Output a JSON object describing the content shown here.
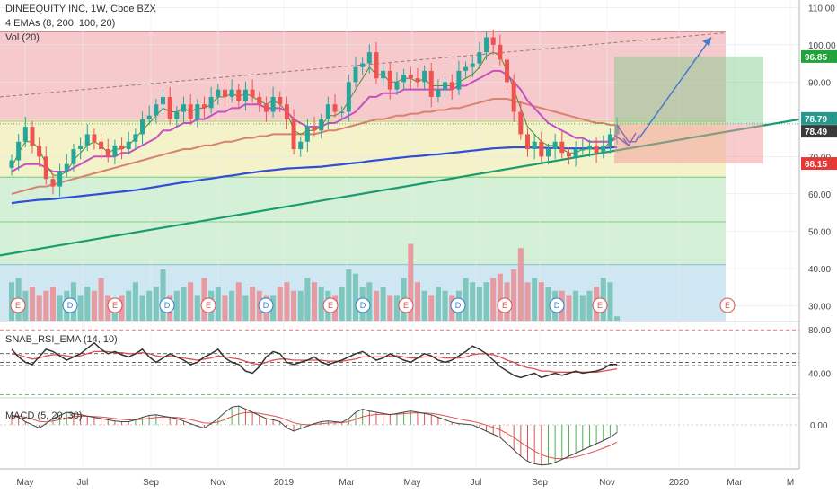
{
  "legend": {
    "title": "DINEEQUITY INC, 1W, Cboe BZX",
    "ema": "4 EMAs (8, 200, 100, 20)",
    "vol": "Vol (20)",
    "rsi": "SNAB_RSI_EMA  (14, 10)",
    "macd": "MACD (5, 20, 30)"
  },
  "colors": {
    "up": "#26a69a",
    "down": "#ef5350",
    "red_zone": "#f6c9cc",
    "yellow_zone": "#f3f2c8",
    "green_zone": "#d4f0d6",
    "blue_zone": "#cfe6f3",
    "ema_fast": "#4e8c2f",
    "ema_mid": "#c84fc0",
    "ema_slow": "#d9826f",
    "ema_long": "#2f4fd6",
    "trendline": "#1a9c6e",
    "rsi_line": "#333333",
    "rsi_ema": "#e05050",
    "macd_line": "#444444"
  },
  "chart_data": [
    {
      "type": "candlestick",
      "title": "DINEEQUITY INC, 1W, Cboe BZX",
      "x_ticks": [
        "May",
        "Jul",
        "Sep",
        "Nov",
        "2019",
        "Mar",
        "May",
        "Jul",
        "Sep",
        "Nov",
        "2020",
        "Mar",
        "M"
      ],
      "y_ticks": [
        "110.00",
        "100.00",
        "90.00",
        "80.00",
        "70.00",
        "60.00",
        "50.00",
        "40.00",
        "30.00"
      ],
      "ylim": [
        26,
        112
      ],
      "price_tags": [
        {
          "label": "96.85",
          "value": 96.85,
          "color": "#1fa33a"
        },
        {
          "label": "78.79",
          "value": 78.79,
          "color": "#25998d"
        },
        {
          "label": "78.49",
          "value": 78.49,
          "color": "#3a3a3a"
        },
        {
          "label": "68.15",
          "value": 68.15,
          "color": "#e53935"
        }
      ],
      "closes": [
        69,
        74,
        78,
        73,
        70,
        64,
        62,
        66,
        68,
        72,
        73,
        76,
        74,
        72,
        70,
        73,
        72,
        74,
        76,
        80,
        81,
        84,
        86,
        80,
        82,
        84,
        80,
        84,
        83,
        86,
        88,
        86,
        88,
        85,
        88,
        86,
        84,
        82,
        86,
        84,
        80,
        72,
        74,
        78,
        77,
        80,
        84,
        82,
        82,
        90,
        94,
        95,
        98,
        91,
        93,
        88,
        90,
        92,
        91,
        90,
        93,
        86,
        88,
        90,
        88,
        93,
        94,
        95,
        98,
        102,
        100,
        96,
        90,
        82,
        76,
        72,
        74,
        70,
        72,
        74,
        71,
        70,
        72,
        72,
        73,
        71,
        73,
        76,
        78.5
      ],
      "ema_fast": [
        67,
        71,
        74,
        74,
        72,
        68,
        65,
        65,
        66,
        69,
        71,
        73,
        74,
        73,
        71,
        72,
        72,
        73,
        75,
        77,
        79,
        81,
        83,
        82,
        82,
        83,
        82,
        83,
        83,
        84,
        86,
        86,
        87,
        86,
        87,
        86,
        85,
        84,
        85,
        84,
        82,
        77,
        76,
        77,
        77,
        78,
        81,
        81,
        82,
        85,
        88,
        91,
        94,
        92,
        92,
        90,
        90,
        91,
        91,
        90,
        91,
        89,
        89,
        89,
        89,
        90,
        91,
        92,
        94,
        97,
        98,
        97,
        93,
        88,
        83,
        78,
        76,
        74,
        73,
        73,
        72,
        71,
        71,
        72,
        72,
        72,
        72,
        74,
        76
      ],
      "ema_mid": [
        66,
        67,
        68,
        68,
        68,
        67,
        66,
        66,
        66,
        67,
        68,
        69,
        70,
        70,
        70,
        70,
        71,
        71,
        72,
        73,
        74,
        75,
        77,
        77,
        78,
        79,
        79,
        80,
        80,
        81,
        82,
        82,
        83,
        83,
        84,
        84,
        84,
        83,
        83,
        83,
        82,
        80,
        79,
        78,
        78,
        78,
        79,
        79,
        80,
        81,
        82,
        84,
        86,
        86,
        87,
        87,
        87,
        88,
        88,
        88,
        88,
        88,
        88,
        88,
        88,
        89,
        89,
        90,
        91,
        92,
        93,
        93,
        92,
        90,
        88,
        85,
        83,
        81,
        79,
        78,
        77,
        76,
        75,
        75,
        74,
        74,
        74,
        74,
        75
      ],
      "ema_slow": [
        60,
        60.5,
        61,
        61.5,
        62,
        62,
        62.5,
        63,
        63.5,
        64,
        64.5,
        65,
        65.5,
        66,
        66.5,
        67,
        67.5,
        68,
        68.5,
        69,
        69.5,
        70,
        70.5,
        71,
        71.5,
        72,
        72,
        72.5,
        73,
        73,
        73.5,
        74,
        74,
        74.5,
        75,
        75,
        75.5,
        75.5,
        76,
        76,
        76,
        76,
        76,
        76,
        76,
        76.5,
        77,
        77,
        77.5,
        78,
        78.5,
        79,
        79.5,
        80,
        80,
        80.5,
        81,
        81,
        81.5,
        81.5,
        82,
        82,
        82.5,
        82.5,
        83,
        83,
        83.5,
        84,
        84.5,
        85,
        85.5,
        85.5,
        85.5,
        85,
        84.5,
        84,
        83.5,
        83,
        82.5,
        82,
        81.5,
        81,
        80.5,
        80,
        79.5,
        79,
        79,
        78.5,
        78.5
      ],
      "ema_long": [
        57.5,
        57.8,
        58,
        58.2,
        58.4,
        58.5,
        58.6,
        58.8,
        59,
        59.2,
        59.4,
        59.6,
        59.8,
        60,
        60.2,
        60.4,
        60.6,
        60.8,
        61,
        61.3,
        61.6,
        61.9,
        62.2,
        62.5,
        62.8,
        63.1,
        63.3,
        63.6,
        63.9,
        64.1,
        64.4,
        64.7,
        64.9,
        65.2,
        65.5,
        65.7,
        66,
        66.2,
        66.4,
        66.6,
        66.8,
        66.9,
        67,
        67.1,
        67.2,
        67.3,
        67.5,
        67.7,
        67.9,
        68.1,
        68.3,
        68.5,
        68.8,
        69,
        69.2,
        69.4,
        69.6,
        69.8,
        70,
        70.1,
        70.3,
        70.5,
        70.6,
        70.8,
        71,
        71.2,
        71.4,
        71.6,
        71.8,
        72,
        72.2,
        72.3,
        72.4,
        72.5,
        72.5,
        72.5,
        72.4,
        72.4,
        72.3,
        72.3,
        72.2,
        72.2,
        72.2,
        72.2,
        72.2,
        72.2,
        72.3,
        72.4,
        72.6
      ],
      "volume_relative": [
        0.45,
        0.5,
        0.35,
        0.4,
        0.3,
        0.35,
        0.4,
        0.3,
        0.35,
        0.45,
        0.3,
        0.4,
        0.35,
        0.5,
        0.3,
        0.25,
        0.3,
        0.35,
        0.45,
        0.3,
        0.35,
        0.4,
        0.6,
        0.3,
        0.35,
        0.4,
        0.45,
        0.3,
        0.5,
        0.35,
        0.4,
        0.3,
        0.35,
        0.45,
        0.3,
        0.4,
        0.35,
        0.3,
        0.3,
        0.4,
        0.45,
        0.35,
        0.35,
        0.5,
        0.45,
        0.4,
        0.35,
        0.3,
        0.4,
        0.6,
        0.55,
        0.4,
        0.45,
        0.35,
        0.4,
        0.3,
        0.3,
        0.5,
        0.9,
        0.45,
        0.35,
        0.3,
        0.4,
        0.35,
        0.3,
        0.35,
        0.5,
        0.45,
        0.4,
        0.45,
        0.5,
        0.55,
        0.45,
        0.6,
        0.85,
        0.45,
        0.5,
        0.45,
        0.4,
        0.35,
        0.35,
        0.3,
        0.35,
        0.3,
        0.35,
        0.4,
        0.5,
        0.45,
        0.05
      ],
      "events": [
        "E",
        "D",
        "E",
        "D",
        "E",
        "D",
        "E",
        "D",
        "E",
        "D",
        "E",
        "D",
        "E",
        "E"
      ]
    },
    {
      "type": "line",
      "title": "SNAB_RSI_EMA  (14, 10)",
      "y_ticks": [
        "80.00",
        "40.00"
      ],
      "ylim": [
        18,
        86
      ],
      "reference_levels": [
        80,
        58,
        55,
        50,
        47,
        20
      ],
      "rsi": [
        62,
        55,
        50,
        48,
        55,
        62,
        60,
        56,
        52,
        55,
        58,
        63,
        68,
        62,
        58,
        60,
        57,
        55,
        58,
        62,
        55,
        50,
        54,
        58,
        55,
        52,
        48,
        50,
        55,
        58,
        62,
        54,
        50,
        48,
        42,
        40,
        46,
        55,
        60,
        58,
        50,
        48,
        50,
        52,
        55,
        50,
        48,
        50,
        52,
        55,
        58,
        60,
        56,
        52,
        54,
        58,
        55,
        52,
        50,
        54,
        58,
        56,
        52,
        50,
        52,
        56,
        60,
        65,
        62,
        58,
        52,
        46,
        42,
        38,
        36,
        38,
        40,
        36,
        38,
        40,
        38,
        40,
        42,
        40,
        41,
        42,
        44,
        48,
        48
      ],
      "rsi_ema": [
        58,
        57,
        55,
        53,
        54,
        56,
        57,
        57,
        56,
        55,
        56,
        58,
        60,
        60,
        60,
        59,
        59,
        58,
        58,
        59,
        58,
        56,
        55,
        56,
        55,
        54,
        53,
        52,
        53,
        54,
        56,
        55,
        54,
        53,
        51,
        49,
        48,
        50,
        52,
        53,
        53,
        52,
        52,
        52,
        52,
        52,
        51,
        51,
        51,
        52,
        53,
        55,
        55,
        55,
        55,
        56,
        56,
        55,
        54,
        54,
        55,
        55,
        55,
        54,
        54,
        54,
        55,
        57,
        58,
        58,
        57,
        55,
        52,
        50,
        47,
        45,
        44,
        42,
        42,
        41,
        41,
        41,
        41,
        41,
        41,
        41,
        42,
        43,
        44
      ]
    },
    {
      "type": "bar",
      "title": "MACD (5, 20, 30)",
      "y_ticks": [
        "0.00"
      ],
      "ylim": [
        -7,
        4
      ],
      "macd": [
        1.5,
        1.2,
        0.5,
        0,
        -0.5,
        0.2,
        1,
        1.5,
        2,
        1.8,
        1.6,
        1.4,
        1.2,
        1,
        0.8,
        0.6,
        0.5,
        0.5,
        0.8,
        1.2,
        1.5,
        1.6,
        1.4,
        1.2,
        1,
        0.6,
        0.2,
        -0.2,
        -0.5,
        0.2,
        1,
        2,
        2.8,
        3,
        2.5,
        2,
        1.5,
        1,
        0.8,
        0.5,
        -0.5,
        -1,
        -0.6,
        -0.2,
        0.2,
        0.5,
        0.6,
        0.5,
        0.4,
        1,
        2,
        2.5,
        2.2,
        2,
        1.8,
        1.6,
        1.8,
        2,
        2.2,
        2,
        1.8,
        1.6,
        1.2,
        0.8,
        0.4,
        0.2,
        0.1,
        0,
        -0.5,
        -1,
        -1.5,
        -2,
        -3,
        -4,
        -5,
        -5.8,
        -6.2,
        -6.4,
        -6.3,
        -6,
        -5.5,
        -5,
        -4.5,
        -4,
        -3.5,
        -3,
        -2.5,
        -2,
        -1.2
      ]
    }
  ]
}
